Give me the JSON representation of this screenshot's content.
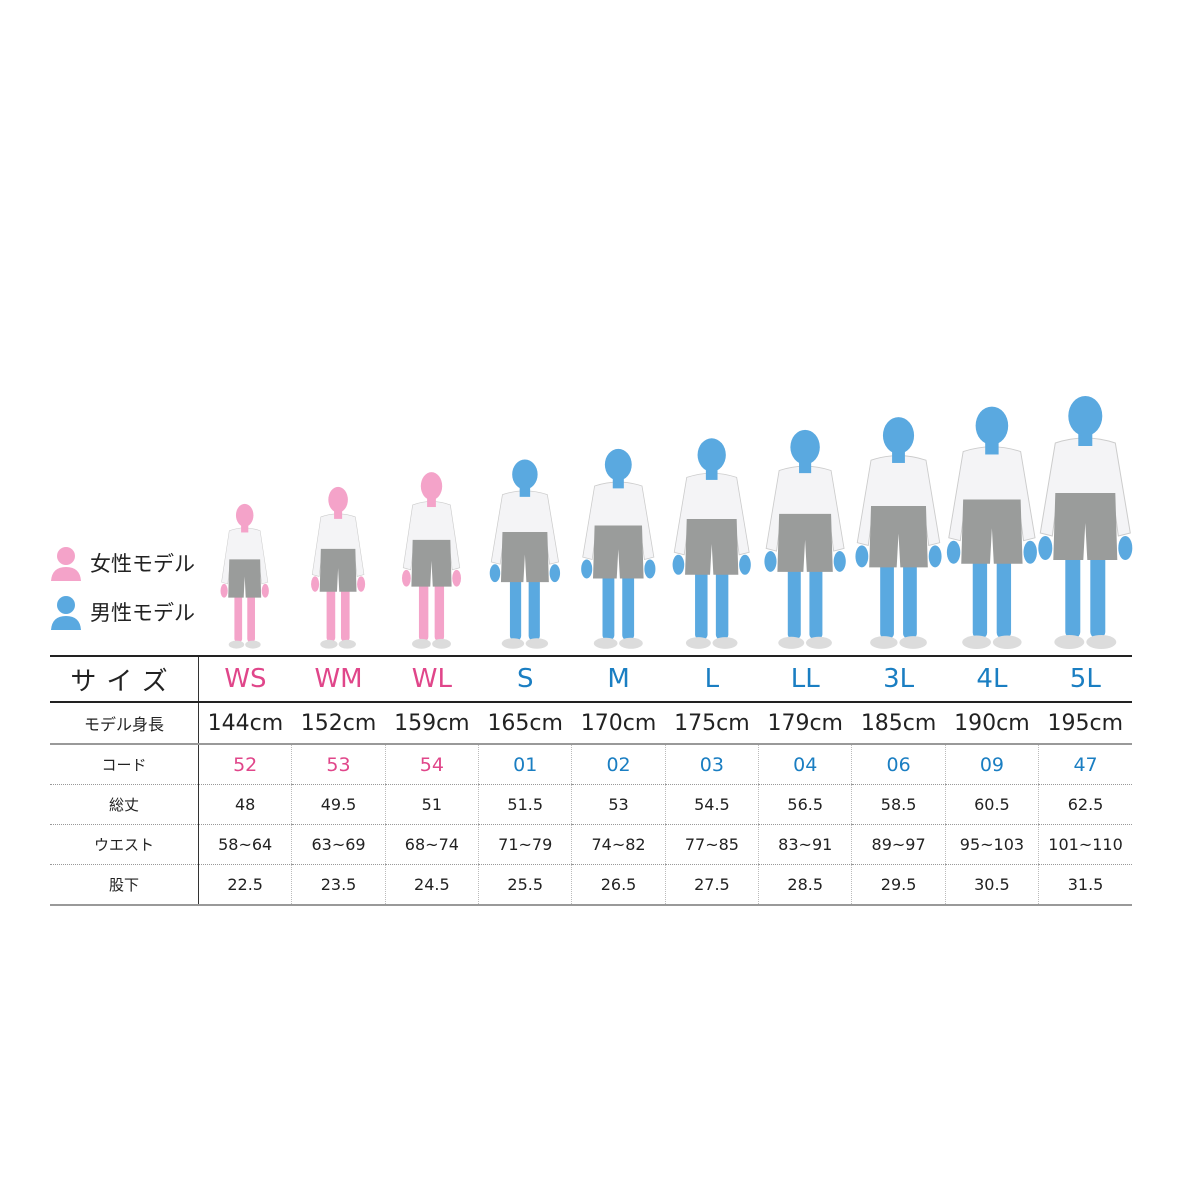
{
  "colors": {
    "female_text": "#e0468a",
    "male_text": "#1a7ec2",
    "female_skin": "#f4a3c9",
    "male_skin": "#5aa9e0",
    "shorts": "#9a9c9b",
    "shirt": "#f4f4f6"
  },
  "legend": {
    "female": "女性モデル",
    "male": "男性モデル",
    "female_icon": "person-icon",
    "male_icon": "person-icon"
  },
  "labels": {
    "size": "サイズ",
    "height": "モデル身長",
    "code": "コード",
    "total_length": "総丈",
    "waist": "ウエスト",
    "inseam": "股下"
  },
  "sizes": [
    {
      "size": "WS",
      "gender": "female",
      "height_cm": 144,
      "height": "144cm",
      "code": "52",
      "total_length": "48",
      "waist": "58~64",
      "inseam": "22.5"
    },
    {
      "size": "WM",
      "gender": "female",
      "height_cm": 152,
      "height": "152cm",
      "code": "53",
      "total_length": "49.5",
      "waist": "63~69",
      "inseam": "23.5"
    },
    {
      "size": "WL",
      "gender": "female",
      "height_cm": 159,
      "height": "159cm",
      "code": "54",
      "total_length": "51",
      "waist": "68~74",
      "inseam": "24.5"
    },
    {
      "size": "S",
      "gender": "male",
      "height_cm": 165,
      "height": "165cm",
      "code": "01",
      "total_length": "51.5",
      "waist": "71~79",
      "inseam": "25.5"
    },
    {
      "size": "M",
      "gender": "male",
      "height_cm": 170,
      "height": "170cm",
      "code": "02",
      "total_length": "53",
      "waist": "74~82",
      "inseam": "26.5"
    },
    {
      "size": "L",
      "gender": "male",
      "height_cm": 175,
      "height": "175cm",
      "code": "03",
      "total_length": "54.5",
      "waist": "77~85",
      "inseam": "27.5"
    },
    {
      "size": "LL",
      "gender": "male",
      "height_cm": 179,
      "height": "179cm",
      "code": "04",
      "total_length": "56.5",
      "waist": "83~91",
      "inseam": "28.5"
    },
    {
      "size": "3L",
      "gender": "male",
      "height_cm": 185,
      "height": "185cm",
      "code": "06",
      "total_length": "58.5",
      "waist": "89~97",
      "inseam": "29.5"
    },
    {
      "size": "4L",
      "gender": "male",
      "height_cm": 190,
      "height": "190cm",
      "code": "09",
      "total_length": "60.5",
      "waist": "95~103",
      "inseam": "30.5"
    },
    {
      "size": "5L",
      "gender": "male",
      "height_cm": 195,
      "height": "195cm",
      "code": "47",
      "total_length": "62.5",
      "waist": "101~110",
      "inseam": "31.5"
    }
  ]
}
